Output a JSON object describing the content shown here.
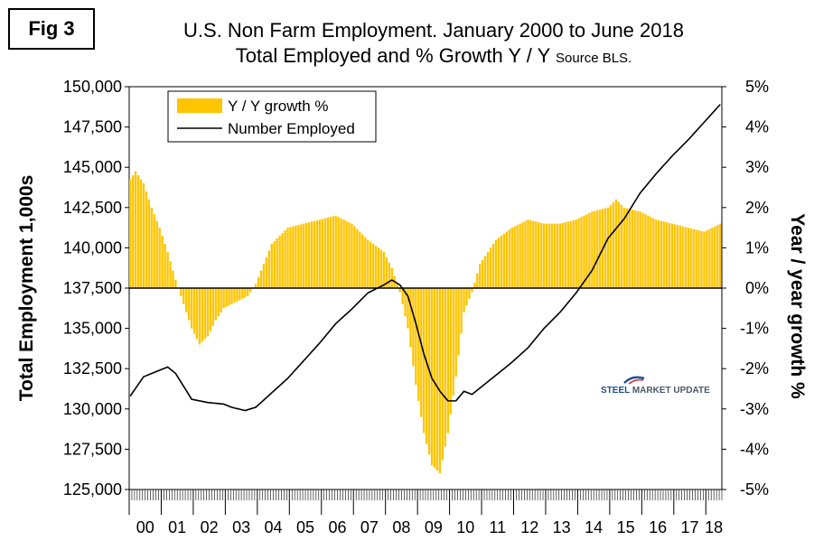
{
  "badge": "Fig 3",
  "title_line1": "U.S. Non Farm Employment. January 2000 to June 2018",
  "title_line2": "Total Employed and % Growth Y / Y",
  "source": "Source BLS.",
  "logo": {
    "word1": "STEEL",
    "word2": "MARKET UPDATE"
  },
  "colors": {
    "growth_fill": "#ffc400",
    "line": "#000000",
    "logo_blue": "#1f4f8f",
    "logo_red": "#d8262e"
  },
  "chart_data": {
    "type": "bar+line",
    "ylabel": "Total Employment 1,000s",
    "y2label": "Year / year growth %",
    "ylim": [
      125000,
      150000
    ],
    "y2lim": [
      -5,
      5
    ],
    "yticks": [
      "125,000",
      "127,500",
      "130,000",
      "132,500",
      "135,000",
      "137,500",
      "140,000",
      "142,500",
      "145,000",
      "147,500",
      "150,000"
    ],
    "y2ticks": [
      "-5%",
      "-4%",
      "-3%",
      "-2%",
      "-1%",
      "0%",
      "1%",
      "2%",
      "3%",
      "4%",
      "5%"
    ],
    "x_categories": [
      "00",
      "01",
      "02",
      "03",
      "04",
      "05",
      "06",
      "07",
      "08",
      "09",
      "10",
      "11",
      "12",
      "13",
      "14",
      "15",
      "16",
      "17",
      "18"
    ],
    "legend": {
      "position": "top-left",
      "entries": [
        "Y / Y growth %",
        "Number Employed"
      ]
    },
    "grid": false,
    "series": [
      {
        "name": "Y / Y growth %",
        "kind": "bar",
        "axis": "right",
        "frequency": "monthly",
        "start": "2000-01",
        "end": "2018-06",
        "anchors": [
          [
            "2000-01",
            2.7
          ],
          [
            "2000-03",
            2.9
          ],
          [
            "2000-06",
            2.6
          ],
          [
            "2000-09",
            2.0
          ],
          [
            "2000-12",
            1.5
          ],
          [
            "2001-03",
            0.9
          ],
          [
            "2001-06",
            0.2
          ],
          [
            "2001-09",
            -0.4
          ],
          [
            "2001-12",
            -1.0
          ],
          [
            "2002-03",
            -1.4
          ],
          [
            "2002-06",
            -1.2
          ],
          [
            "2002-09",
            -0.8
          ],
          [
            "2002-12",
            -0.5
          ],
          [
            "2003-03",
            -0.4
          ],
          [
            "2003-06",
            -0.3
          ],
          [
            "2003-09",
            -0.2
          ],
          [
            "2003-12",
            0.1
          ],
          [
            "2004-03",
            0.6
          ],
          [
            "2004-06",
            1.1
          ],
          [
            "2004-09",
            1.3
          ],
          [
            "2004-12",
            1.5
          ],
          [
            "2005-06",
            1.6
          ],
          [
            "2005-12",
            1.7
          ],
          [
            "2006-06",
            1.8
          ],
          [
            "2006-12",
            1.6
          ],
          [
            "2007-06",
            1.2
          ],
          [
            "2007-12",
            0.9
          ],
          [
            "2008-03",
            0.5
          ],
          [
            "2008-06",
            -0.1
          ],
          [
            "2008-09",
            -1.0
          ],
          [
            "2008-12",
            -2.4
          ],
          [
            "2009-03",
            -3.6
          ],
          [
            "2009-06",
            -4.4
          ],
          [
            "2009-09",
            -4.6
          ],
          [
            "2009-12",
            -3.6
          ],
          [
            "2010-03",
            -2.2
          ],
          [
            "2010-06",
            -0.6
          ],
          [
            "2010-09",
            -0.1
          ],
          [
            "2010-12",
            0.6
          ],
          [
            "2011-06",
            1.2
          ],
          [
            "2011-12",
            1.5
          ],
          [
            "2012-06",
            1.7
          ],
          [
            "2012-12",
            1.6
          ],
          [
            "2013-06",
            1.6
          ],
          [
            "2013-12",
            1.7
          ],
          [
            "2014-06",
            1.9
          ],
          [
            "2014-12",
            2.0
          ],
          [
            "2015-03",
            2.2
          ],
          [
            "2015-06",
            2.0
          ],
          [
            "2015-12",
            1.9
          ],
          [
            "2016-06",
            1.7
          ],
          [
            "2016-12",
            1.6
          ],
          [
            "2017-06",
            1.5
          ],
          [
            "2017-12",
            1.4
          ],
          [
            "2018-06",
            1.6
          ]
        ]
      },
      {
        "name": "Number Employed",
        "kind": "line",
        "axis": "left",
        "frequency": "monthly",
        "start": "2000-01",
        "end": "2018-06",
        "anchors": [
          [
            "2000-01",
            130800
          ],
          [
            "2000-06",
            132000
          ],
          [
            "2000-12",
            132400
          ],
          [
            "2001-03",
            132600
          ],
          [
            "2001-06",
            132200
          ],
          [
            "2001-09",
            131400
          ],
          [
            "2001-12",
            130600
          ],
          [
            "2002-06",
            130400
          ],
          [
            "2002-12",
            130300
          ],
          [
            "2003-03",
            130100
          ],
          [
            "2003-08",
            129900
          ],
          [
            "2003-12",
            130100
          ],
          [
            "2004-06",
            131000
          ],
          [
            "2004-12",
            131900
          ],
          [
            "2005-06",
            133000
          ],
          [
            "2005-12",
            134100
          ],
          [
            "2006-06",
            135300
          ],
          [
            "2006-12",
            136200
          ],
          [
            "2007-06",
            137200
          ],
          [
            "2007-12",
            137700
          ],
          [
            "2008-03",
            138000
          ],
          [
            "2008-06",
            137700
          ],
          [
            "2008-09",
            137000
          ],
          [
            "2008-12",
            135300
          ],
          [
            "2009-03",
            133400
          ],
          [
            "2009-06",
            131900
          ],
          [
            "2009-09",
            131100
          ],
          [
            "2009-12",
            130500
          ],
          [
            "2010-03",
            130500
          ],
          [
            "2010-06",
            131100
          ],
          [
            "2010-09",
            130900
          ],
          [
            "2010-12",
            131300
          ],
          [
            "2011-06",
            132100
          ],
          [
            "2011-12",
            132900
          ],
          [
            "2012-06",
            133800
          ],
          [
            "2012-12",
            135000
          ],
          [
            "2013-06",
            136000
          ],
          [
            "2013-12",
            137200
          ],
          [
            "2014-06",
            138600
          ],
          [
            "2014-12",
            140600
          ],
          [
            "2015-06",
            141800
          ],
          [
            "2015-12",
            143400
          ],
          [
            "2016-06",
            144600
          ],
          [
            "2016-12",
            145700
          ],
          [
            "2017-06",
            146700
          ],
          [
            "2017-12",
            147800
          ],
          [
            "2018-06",
            148900
          ]
        ]
      }
    ]
  }
}
